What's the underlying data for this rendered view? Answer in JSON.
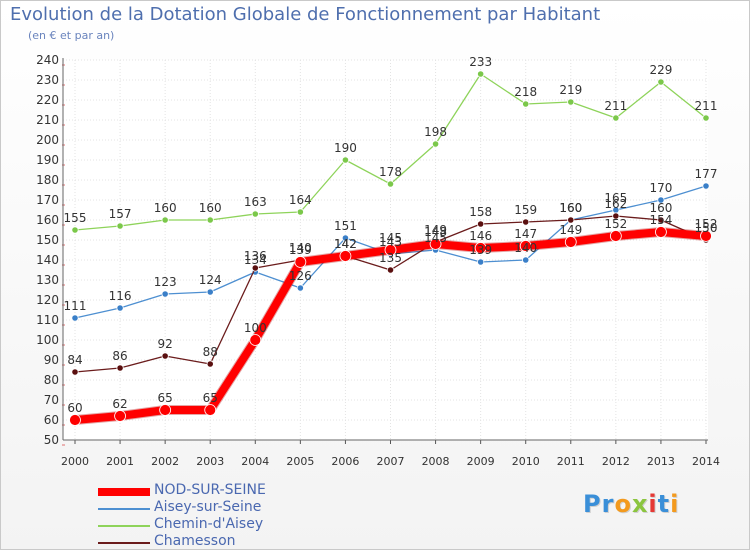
{
  "header": {
    "title": "Evolution de la Dotation Globale de Fonctionnement par Habitant",
    "subtitle": "(en € et par an)"
  },
  "logo": {
    "text": "Proxiti",
    "letter_colors": [
      "#3a8fd8",
      "#3a8fd8",
      "#f39a1e",
      "#8bc53f",
      "#e53935",
      "#3a8fd8",
      "#f39a1e"
    ]
  },
  "chart_data": {
    "type": "line",
    "title": "Evolution de la Dotation Globale de Fonctionnement par Habitant",
    "subtitle": "(en € et par an)",
    "x": [
      "2000",
      "2001",
      "2002",
      "2003",
      "2004",
      "2005",
      "2006",
      "2007",
      "2008",
      "2009",
      "2010",
      "2011",
      "2012",
      "2013",
      "2014"
    ],
    "ylim": [
      50,
      240
    ],
    "yticks": [
      50,
      60,
      70,
      80,
      90,
      100,
      110,
      120,
      130,
      140,
      150,
      160,
      170,
      180,
      190,
      200,
      210,
      220,
      230,
      240
    ],
    "grid": true,
    "legend_position": "bottom-left",
    "series": [
      {
        "name": "Chemin-d'Aisey",
        "color": "#8ed35a",
        "values": [
          155,
          157,
          160,
          160,
          163,
          164,
          190,
          178,
          198,
          233,
          218,
          219,
          211,
          229,
          211
        ]
      },
      {
        "name": "Aisey-sur-Seine",
        "color": "#4d8fd1",
        "values": [
          111,
          116,
          123,
          124,
          134,
          126,
          151,
          143,
          145,
          139,
          140,
          160,
          165,
          170,
          177
        ]
      },
      {
        "name": "Chamesson",
        "color": "#6b1c1c",
        "values": [
          84,
          86,
          92,
          88,
          136,
          140,
          142,
          135,
          149,
          158,
          159,
          160,
          162,
          160,
          150
        ]
      },
      {
        "name": "NOD-SUR-SEINE",
        "color": "#ff0000",
        "values": [
          60,
          62,
          65,
          65,
          100,
          139,
          142,
          145,
          148,
          146,
          147,
          149,
          152,
          154,
          152
        ]
      }
    ]
  }
}
